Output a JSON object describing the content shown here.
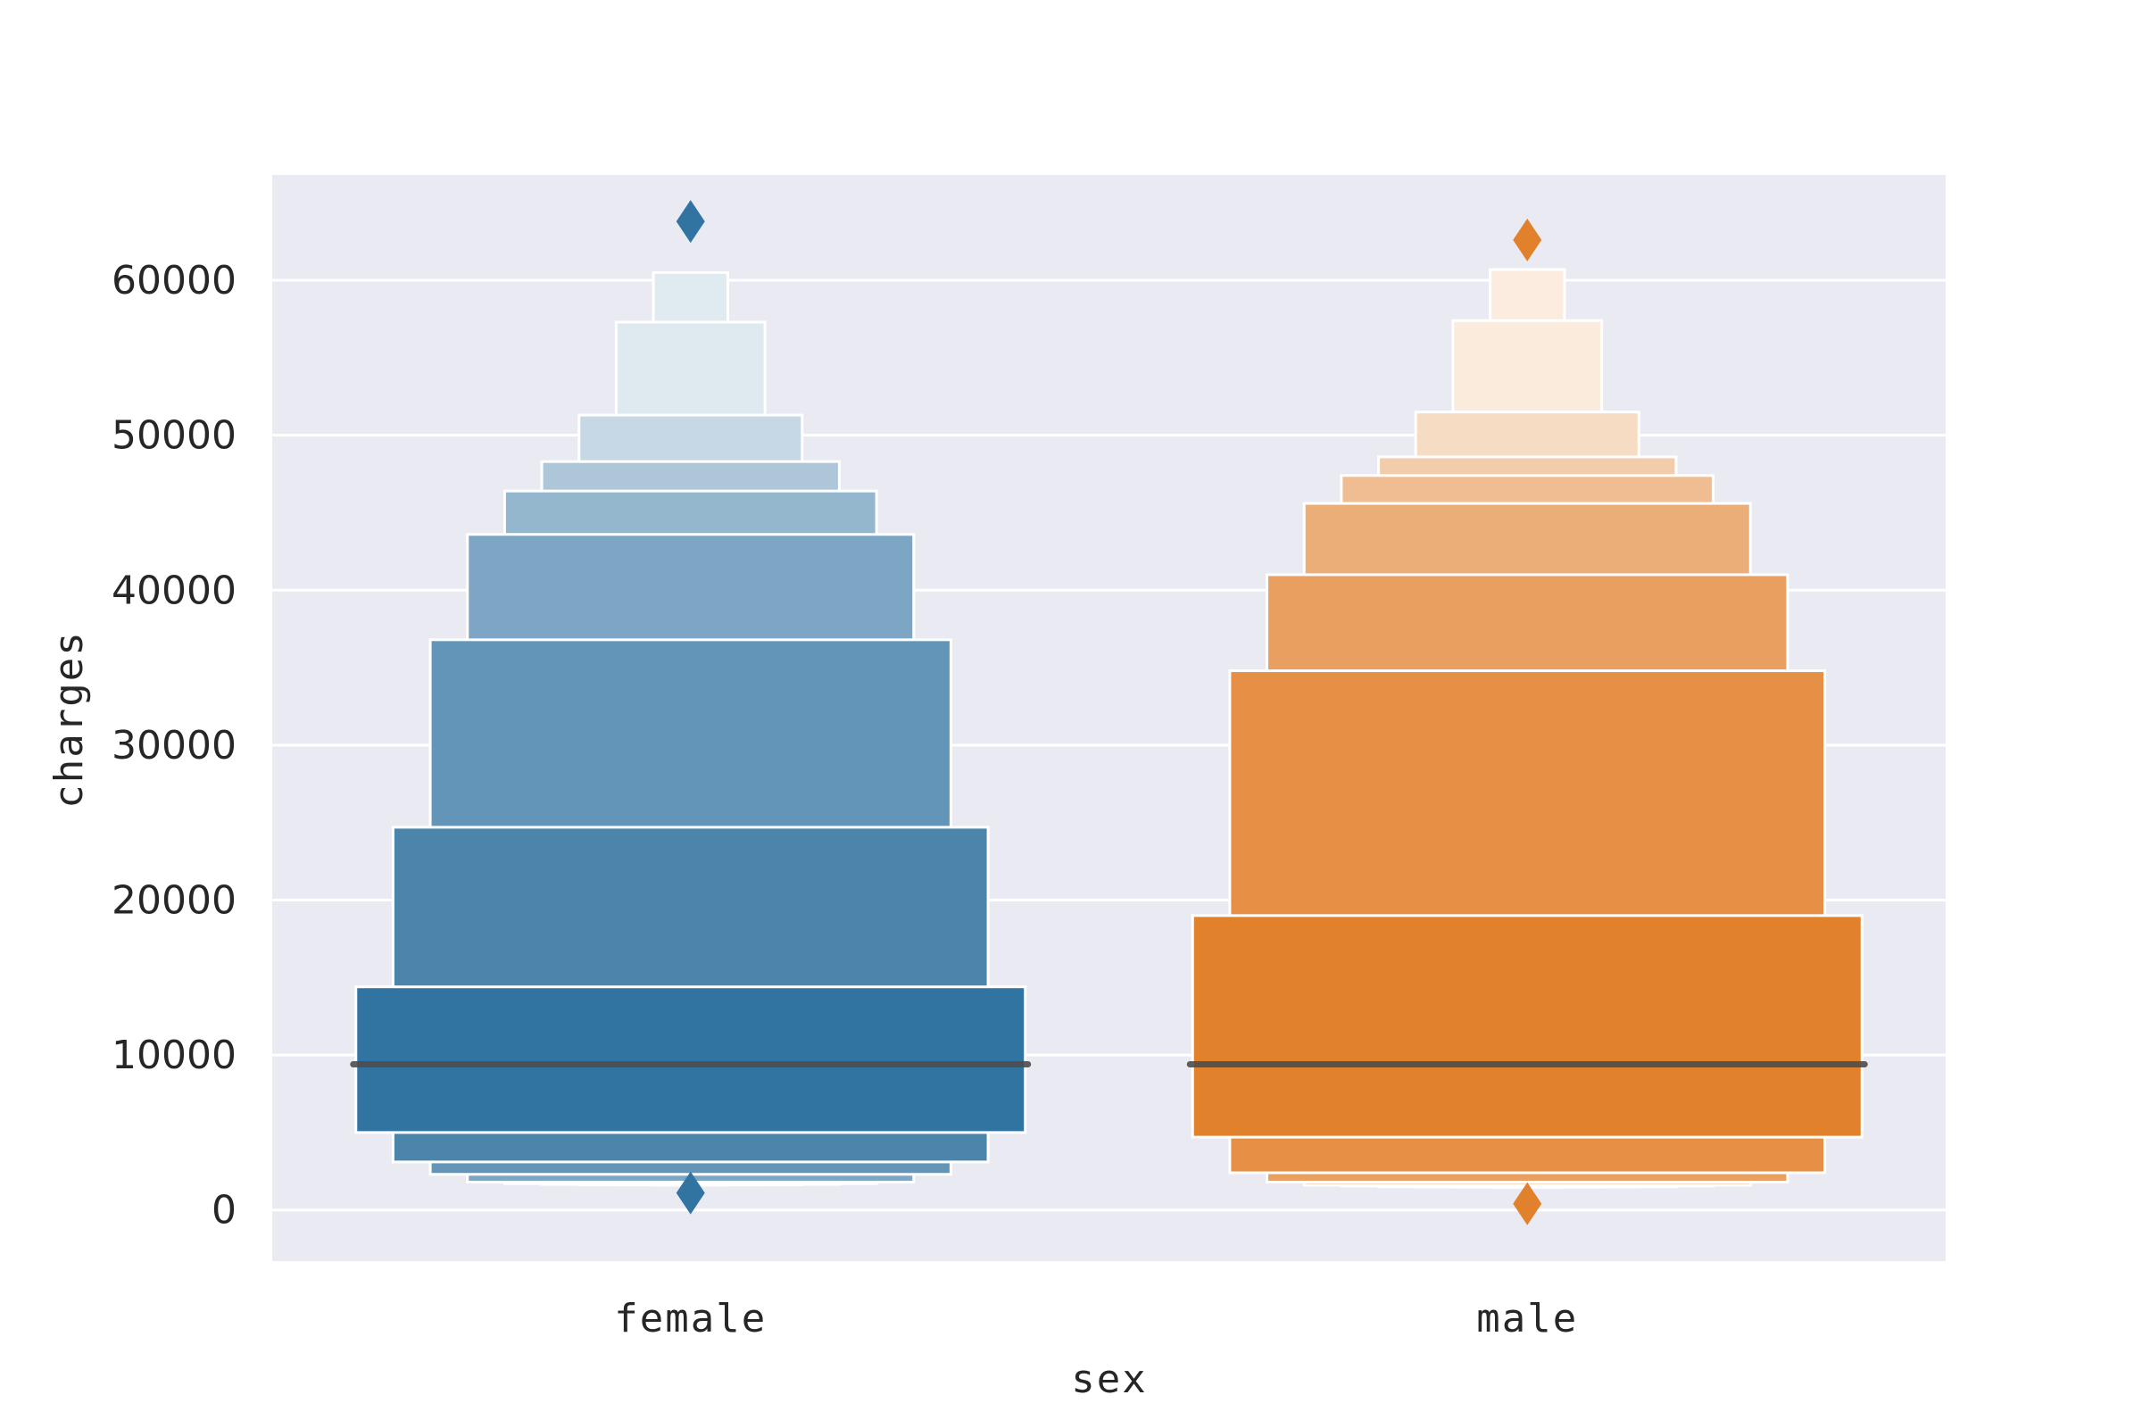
{
  "chart_data": {
    "type": "boxen",
    "title": "",
    "xlabel": "sex",
    "ylabel": "charges",
    "ylim": [
      -3300,
      66800
    ],
    "yticks": [
      0,
      10000,
      20000,
      30000,
      40000,
      50000,
      60000
    ],
    "grid": true,
    "categories": [
      "female",
      "male"
    ],
    "series": [
      {
        "category": "female",
        "color": "#3274a1",
        "median": 9400,
        "boxes": [
          {
            "low": 5000,
            "high": 14400
          },
          {
            "low": 3100,
            "high": 24700
          },
          {
            "low": 2300,
            "high": 36800
          },
          {
            "low": 1800,
            "high": 43600
          },
          {
            "low": 1700,
            "high": 46400
          },
          {
            "low": 1650,
            "high": 48300
          },
          {
            "low": 1620,
            "high": 51300
          },
          {
            "low": 1610,
            "high": 57300
          },
          {
            "low": 1610,
            "high": 60500
          }
        ],
        "outliers": [
          63800,
          1100
        ]
      },
      {
        "category": "male",
        "color": "#e1812c",
        "median": 9400,
        "boxes": [
          {
            "low": 4700,
            "high": 19000
          },
          {
            "low": 2400,
            "high": 34800
          },
          {
            "low": 1800,
            "high": 41000
          },
          {
            "low": 1600,
            "high": 45600
          },
          {
            "low": 1550,
            "high": 47400
          },
          {
            "low": 1500,
            "high": 48600
          },
          {
            "low": 1480,
            "high": 51500
          },
          {
            "low": 1470,
            "high": 57400
          },
          {
            "low": 1460,
            "high": 60700
          }
        ],
        "outliers": [
          62600,
          400
        ]
      }
    ]
  },
  "colors": {
    "plot_background": "#eaeaf2",
    "grid": "#ffffff",
    "median_line": "#4d4d4d"
  }
}
